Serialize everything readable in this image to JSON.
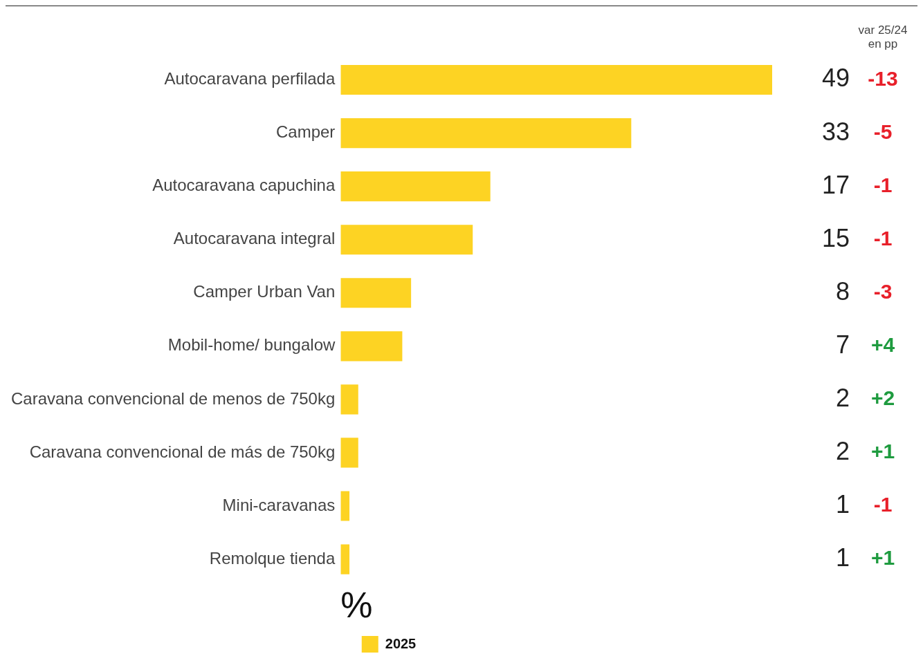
{
  "chart_data": {
    "type": "bar",
    "orientation": "horizontal",
    "xlabel": "%",
    "categories": [
      "Autocaravana perfilada",
      "Camper",
      "Autocaravana capuchina",
      "Autocaravana integral",
      "Camper Urban Van",
      "Mobil-home/ bungalow",
      "Caravana convencional de menos de 750kg",
      "Caravana convencional de más de 750kg",
      "Mini-caravanas",
      "Remolque tienda"
    ],
    "series": [
      {
        "name": "2025",
        "color": "#fdd323",
        "values": [
          49,
          33,
          17,
          15,
          8,
          7,
          2,
          2,
          1,
          1
        ]
      }
    ],
    "xlim": [
      0,
      49
    ],
    "tick_labels": "y",
    "grid": false,
    "legend": "bottom",
    "data_labels": true,
    "annotations": [
      "var 25/24\nen pp",
      "-13",
      "-5",
      "-1",
      "-1",
      "-3",
      "+4",
      "+2",
      "+1",
      "-1",
      "+1"
    ]
  }
}
